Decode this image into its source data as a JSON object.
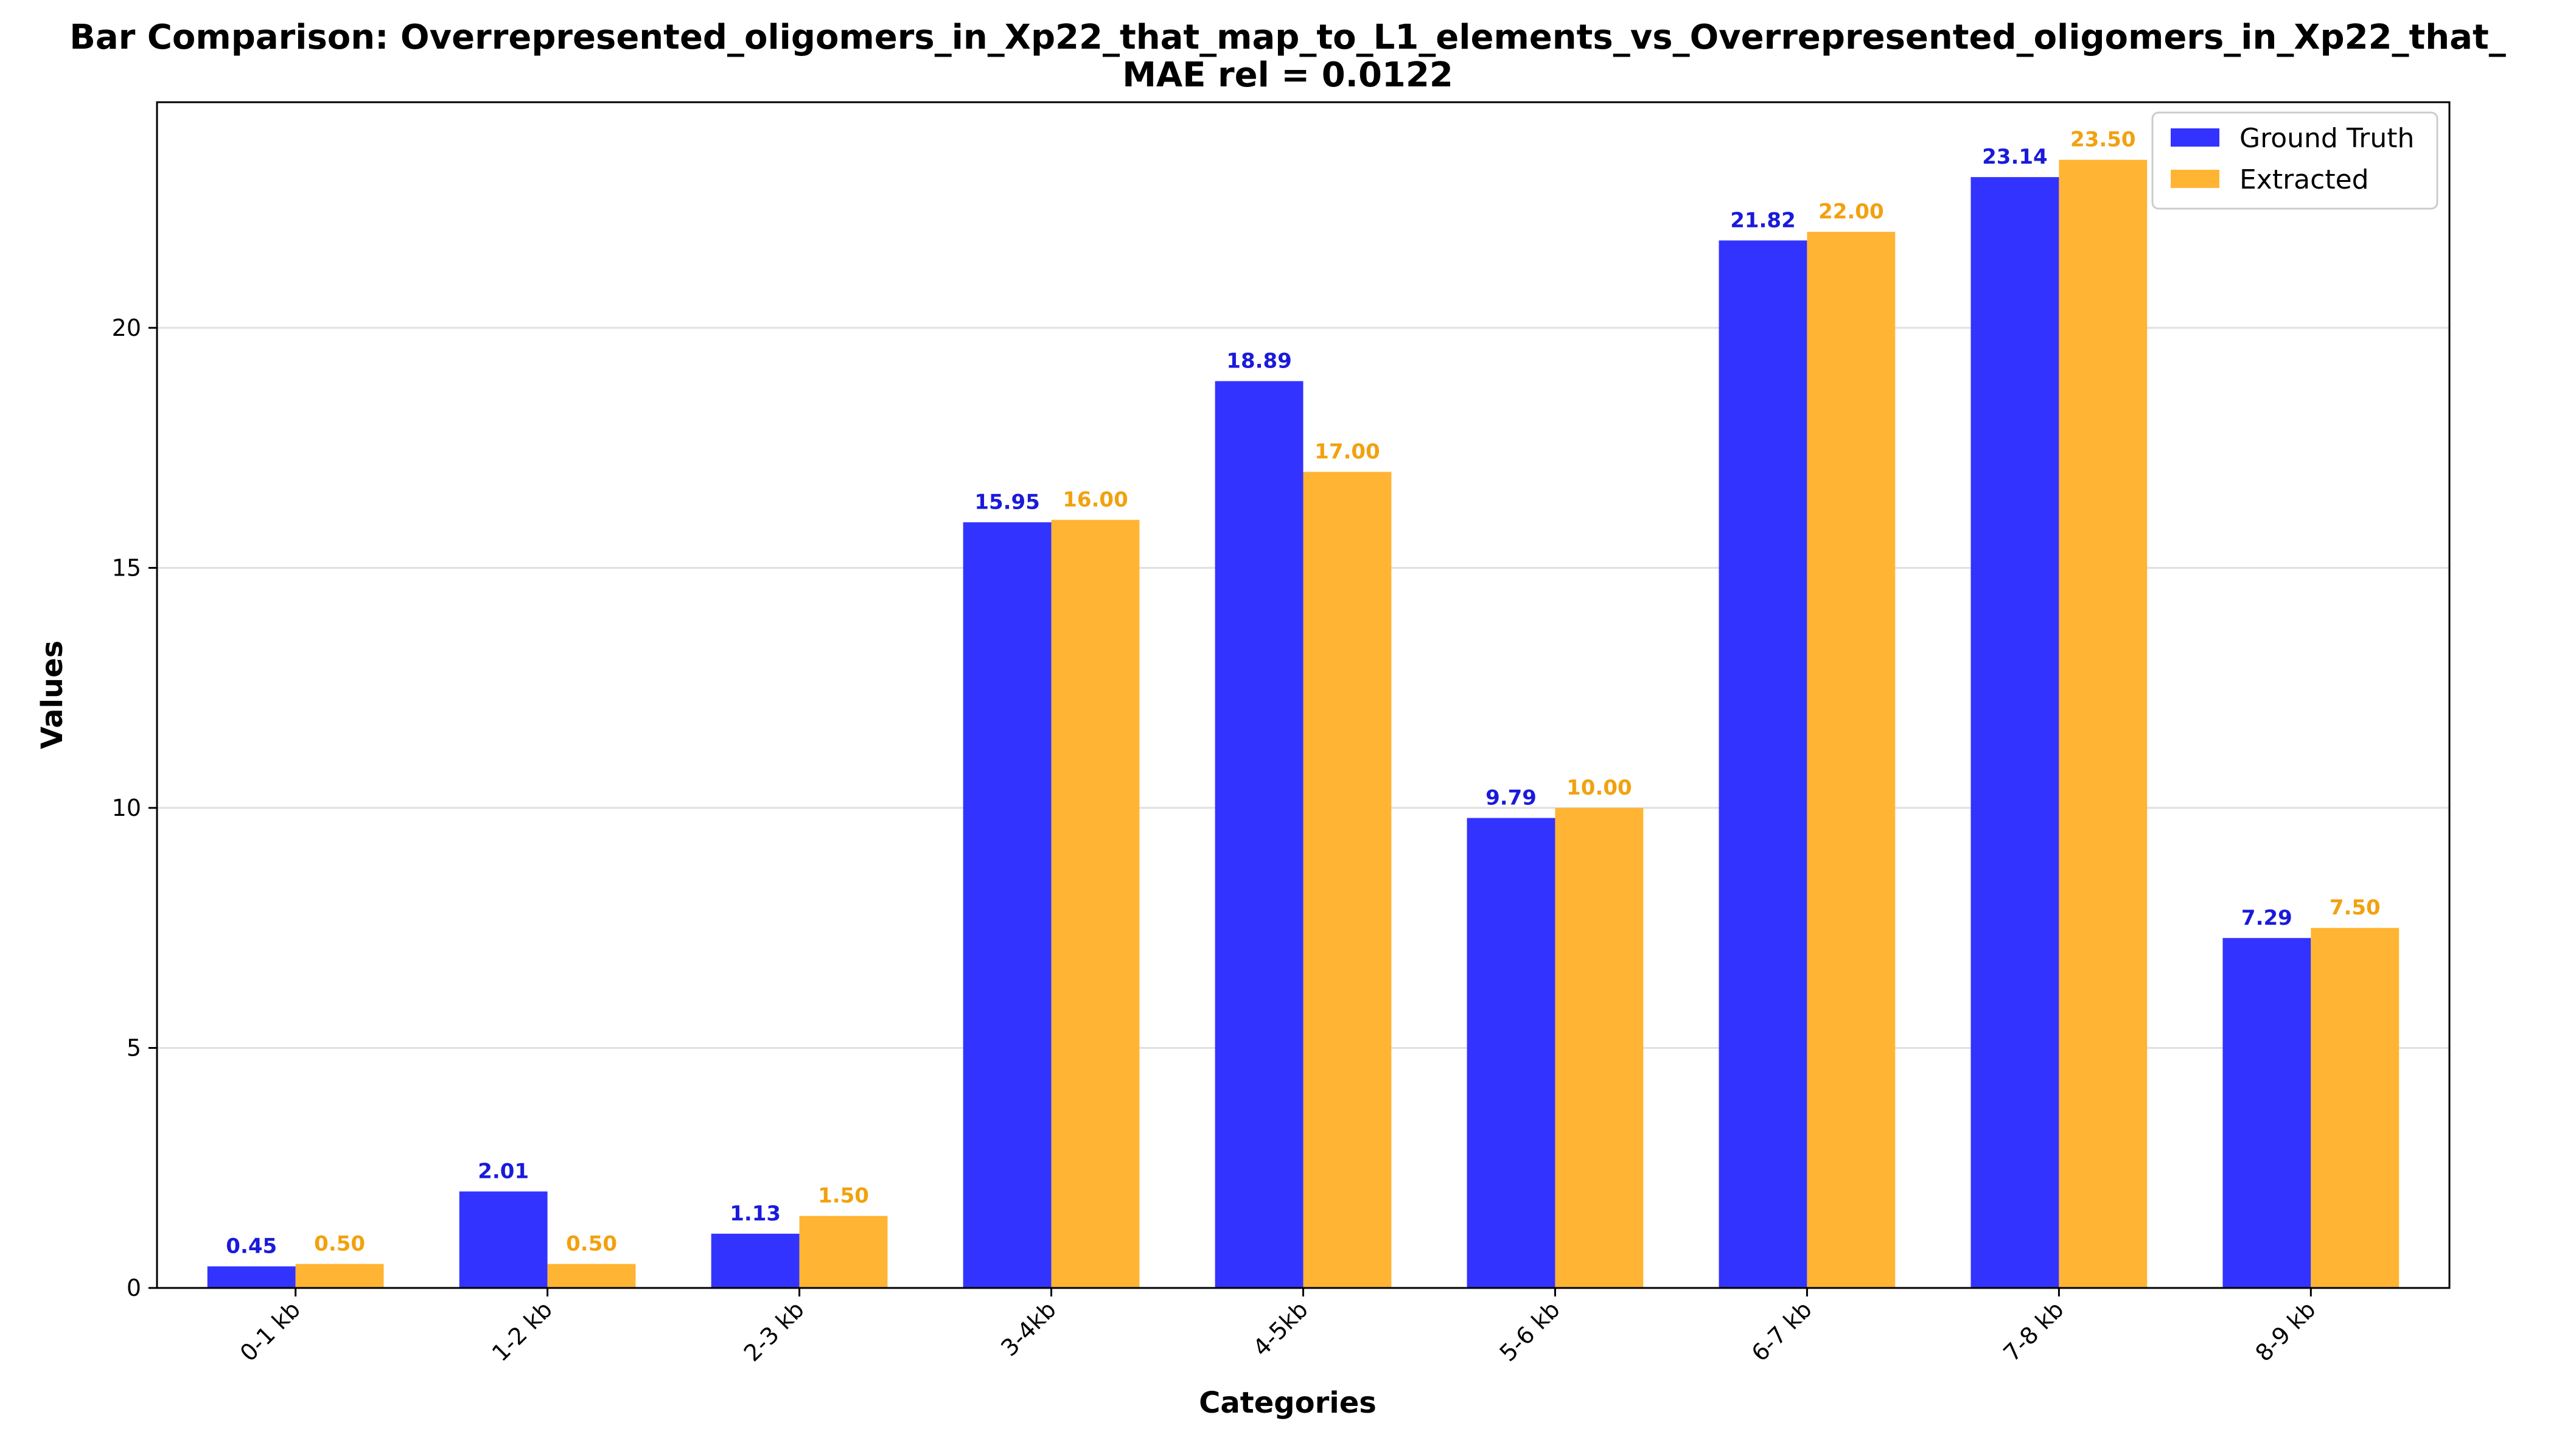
{
  "chart_data": {
    "type": "bar",
    "title": "Bar Comparison: Overrepresented_oligomers_in_Xp22_that_map_to_L1_elements_vs_Overrepresented_oligomers_in_Xp22_that_",
    "subtitle": "MAE rel = 0.0122",
    "xlabel": "Categories",
    "ylabel": "Values",
    "categories": [
      "0-1 kb",
      "1-2 kb",
      "2-3 kb",
      "3-4kb",
      "4-5kb",
      "5-6 kb",
      "6-7 kb",
      "7-8 kb",
      "8-9 kb"
    ],
    "series": [
      {
        "name": "Ground Truth",
        "color": "#3333ff",
        "label_color": "#1a1adb",
        "values": [
          0.45,
          2.01,
          1.13,
          15.95,
          18.89,
          9.79,
          21.82,
          23.14,
          7.29
        ],
        "labels": [
          "0.45",
          "2.01",
          "1.13",
          "15.95",
          "18.89",
          "9.79",
          "21.82",
          "23.14",
          "7.29"
        ]
      },
      {
        "name": "Extracted",
        "color": "#ffb533",
        "label_color": "#f2a10e",
        "values": [
          0.5,
          0.5,
          1.5,
          16.0,
          17.0,
          10.0,
          22.0,
          23.5,
          7.5
        ],
        "labels": [
          "0.50",
          "0.50",
          "1.50",
          "16.00",
          "17.00",
          "10.00",
          "22.00",
          "23.50",
          "7.50"
        ]
      }
    ],
    "ylim": [
      0,
      24.7
    ],
    "yticks": [
      0,
      5,
      10,
      15,
      20
    ],
    "ytick_labels": [
      "0",
      "5",
      "10",
      "15",
      "20"
    ],
    "grid": "y",
    "legend_position": "top-right",
    "xtick_rotation": 45
  }
}
